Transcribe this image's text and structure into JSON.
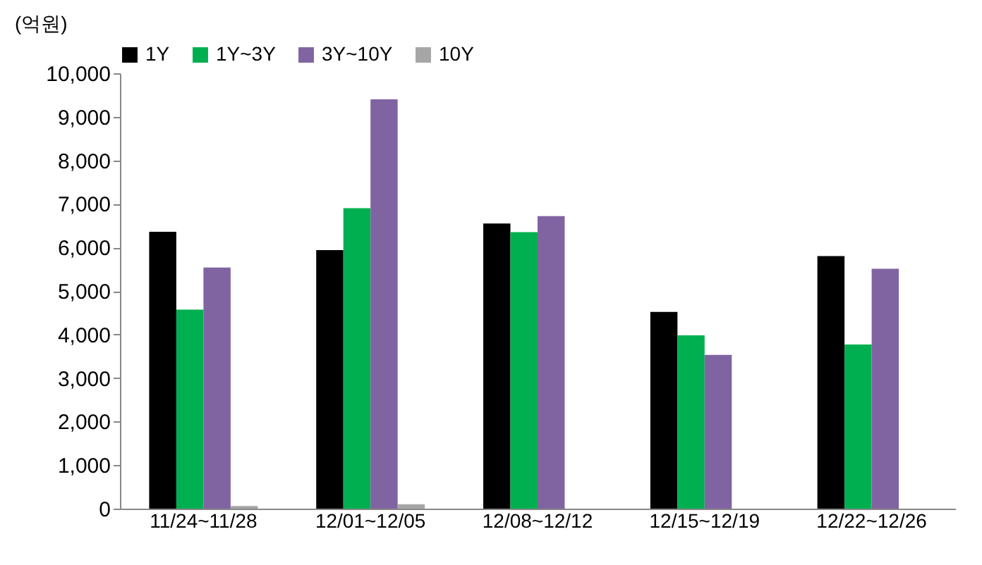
{
  "chart_data": {
    "type": "bar",
    "ylabel": "(억원)",
    "categories": [
      "11/24~11/28",
      "12/01~12/05",
      "12/08~12/12",
      "12/15~12/19",
      "12/22~12/26"
    ],
    "series": [
      {
        "name": "1Y",
        "color": "#000000",
        "values": [
          6360,
          5940,
          6550,
          4520,
          5800
        ]
      },
      {
        "name": "1Y~3Y",
        "color": "#00b050",
        "values": [
          4570,
          6900,
          6350,
          3980,
          3770
        ]
      },
      {
        "name": "3Y~10Y",
        "color": "#8064a2",
        "values": [
          5540,
          9400,
          6720,
          3530,
          5510
        ]
      },
      {
        "name": "10Y",
        "color": "#a6a6a6",
        "values": [
          60,
          100,
          0,
          0,
          0
        ]
      }
    ],
    "ylim": [
      0,
      10000
    ],
    "yticks": [
      0,
      {
        "value": 1000,
        "label": "1,000"
      },
      {
        "value": 2000,
        "label": "2,000"
      },
      {
        "value": 3000,
        "label": "3,000"
      },
      {
        "value": 4000,
        "label": "4,000"
      },
      {
        "value": 5000,
        "label": "5,000"
      },
      {
        "value": 6000,
        "label": "6,000"
      },
      {
        "value": 7000,
        "label": "7,000"
      },
      {
        "value": 8000,
        "label": "8,000"
      },
      {
        "value": 9000,
        "label": "9,000"
      },
      {
        "value": 10000,
        "label": "10,000"
      }
    ],
    "grid": false,
    "legend": "top"
  }
}
